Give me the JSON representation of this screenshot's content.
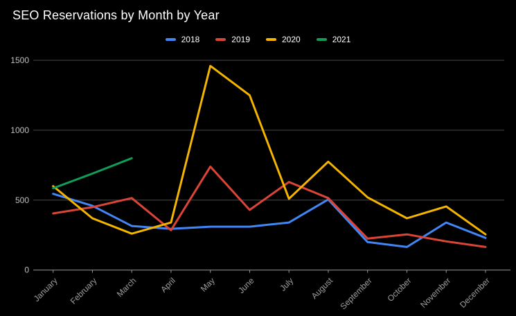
{
  "title": "SEO Reservations by Month by Year",
  "colors": {
    "background": "#000000",
    "title_text": "#ffffff",
    "legend_text": "#ffffff",
    "gridline": "#4a4a4a",
    "baseline": "#9a9a9a",
    "y_axis_text": "#c0c0c0",
    "x_axis_text": "#9e9e9e",
    "series_2018": "#4285f4",
    "series_2019": "#db4437",
    "series_2020": "#f4b400",
    "series_2021": "#0f9d58"
  },
  "legend": {
    "items": [
      {
        "label": "2018",
        "color": "#4285f4"
      },
      {
        "label": "2019",
        "color": "#db4437"
      },
      {
        "label": "2020",
        "color": "#f4b400"
      },
      {
        "label": "2021",
        "color": "#0f9d58"
      }
    ]
  },
  "chart_data": {
    "type": "line",
    "title": "SEO Reservations by Month by Year",
    "xlabel": "",
    "ylabel": "",
    "categories": [
      "January",
      "February",
      "March",
      "April",
      "May",
      "June",
      "July",
      "August",
      "September",
      "October",
      "November",
      "December"
    ],
    "y_ticks": [
      0,
      500,
      1000,
      1500
    ],
    "ylim": [
      0,
      1500
    ],
    "grid": true,
    "legend_position": "top-center",
    "series": [
      {
        "name": "2018",
        "color": "#4285f4",
        "values": [
          545,
          460,
          315,
          295,
          310,
          310,
          340,
          505,
          200,
          165,
          340,
          230
        ]
      },
      {
        "name": "2019",
        "color": "#db4437",
        "values": [
          405,
          450,
          515,
          285,
          740,
          430,
          630,
          515,
          225,
          255,
          205,
          165
        ]
      },
      {
        "name": "2020",
        "color": "#f4b400",
        "values": [
          600,
          370,
          260,
          340,
          1460,
          1250,
          510,
          775,
          520,
          370,
          455,
          255
        ]
      },
      {
        "name": "2021",
        "color": "#0f9d58",
        "values": [
          585,
          690,
          800,
          null,
          null,
          null,
          null,
          null,
          null,
          null,
          null,
          null
        ]
      }
    ]
  }
}
